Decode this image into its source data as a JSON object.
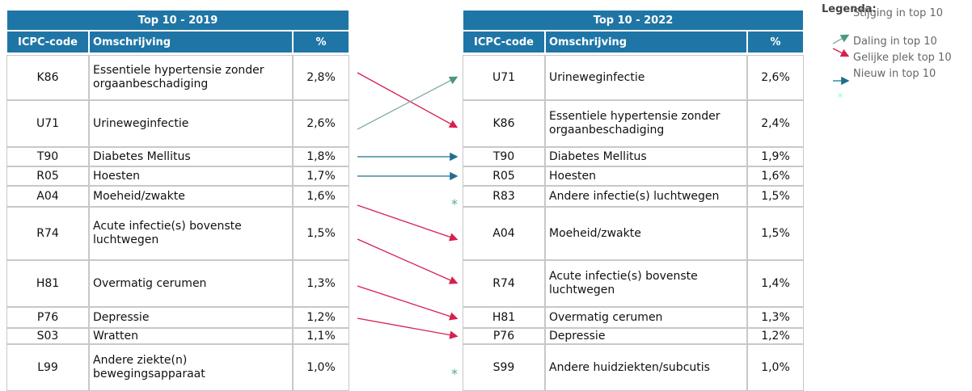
{
  "tables": [
    {
      "title": "Top 10 - 2019",
      "headers": [
        "ICPC-code",
        "Omschrijving",
        "%"
      ],
      "rows": [
        [
          "K86",
          "Essentiele hypertensie zonder orgaanbeschadiging",
          "2,8%"
        ],
        [
          "U71",
          "Urineweginfectie",
          "2,6%"
        ],
        [
          "T90",
          "Diabetes Mellitus",
          "1,8%"
        ],
        [
          "R05",
          "Hoesten",
          "1,7%"
        ],
        [
          "A04",
          "Moeheid/zwakte",
          "1,6%"
        ],
        [
          "R74",
          "Acute infectie(s) bovenste luchtwegen",
          "1,5%"
        ],
        [
          "H81",
          "Overmatig cerumen",
          "1,3%"
        ],
        [
          "P76",
          "Depressie",
          "1,2%"
        ],
        [
          "S03",
          "Wratten",
          "1,1%"
        ],
        [
          "L99",
          "Andere ziekte(n) bewegingsapparaat",
          "1,0%"
        ]
      ]
    },
    {
      "title": "Top 10 - 2022",
      "headers": [
        "ICPC-code",
        "Omschrijving",
        "%"
      ],
      "rows": [
        [
          "U71",
          "Urineweginfectie",
          "2,6%"
        ],
        [
          "K86",
          "Essentiele hypertensie zonder orgaanbeschadiging",
          "2,4%"
        ],
        [
          "T90",
          "Diabetes Mellitus",
          "1,9%"
        ],
        [
          "R05",
          "Hoesten",
          "1,6%"
        ],
        [
          "R83",
          "Andere infectie(s) luchtwegen",
          "1,5%"
        ],
        [
          "A04",
          "Moeheid/zwakte",
          "1,5%"
        ],
        [
          "R74",
          "Acute infectie(s) bovenste luchtwegen",
          "1,4%"
        ],
        [
          "H81",
          "Overmatig cerumen",
          "1,3%"
        ],
        [
          "P76",
          "Depressie",
          "1,2%"
        ],
        [
          "S99",
          "Andere huidziekten/subcutis",
          "1,0%"
        ]
      ]
    }
  ],
  "legend": {
    "title": "Legenda:",
    "items": [
      "Stijging in top 10",
      "Daling in top 10",
      "Gelijke plek top 10",
      "Nieuw in top 10"
    ]
  }
}
